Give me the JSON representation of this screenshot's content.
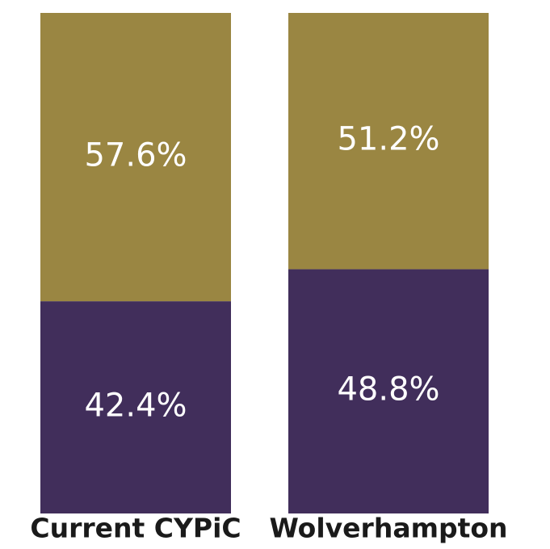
{
  "chart_data": {
    "type": "stacked_bar",
    "categories": [
      "Current CYPiC",
      "Wolverhampton"
    ],
    "series": [
      {
        "color": "#412e5b",
        "values": [
          42.4,
          48.8
        ],
        "value_labels": [
          "42.4%",
          "48.8%"
        ]
      },
      {
        "color": "#9a8642",
        "values": [
          57.6,
          51.2
        ],
        "value_labels": [
          "57.6%",
          "51.2%"
        ]
      }
    ],
    "ylim": [
      0,
      100
    ]
  }
}
